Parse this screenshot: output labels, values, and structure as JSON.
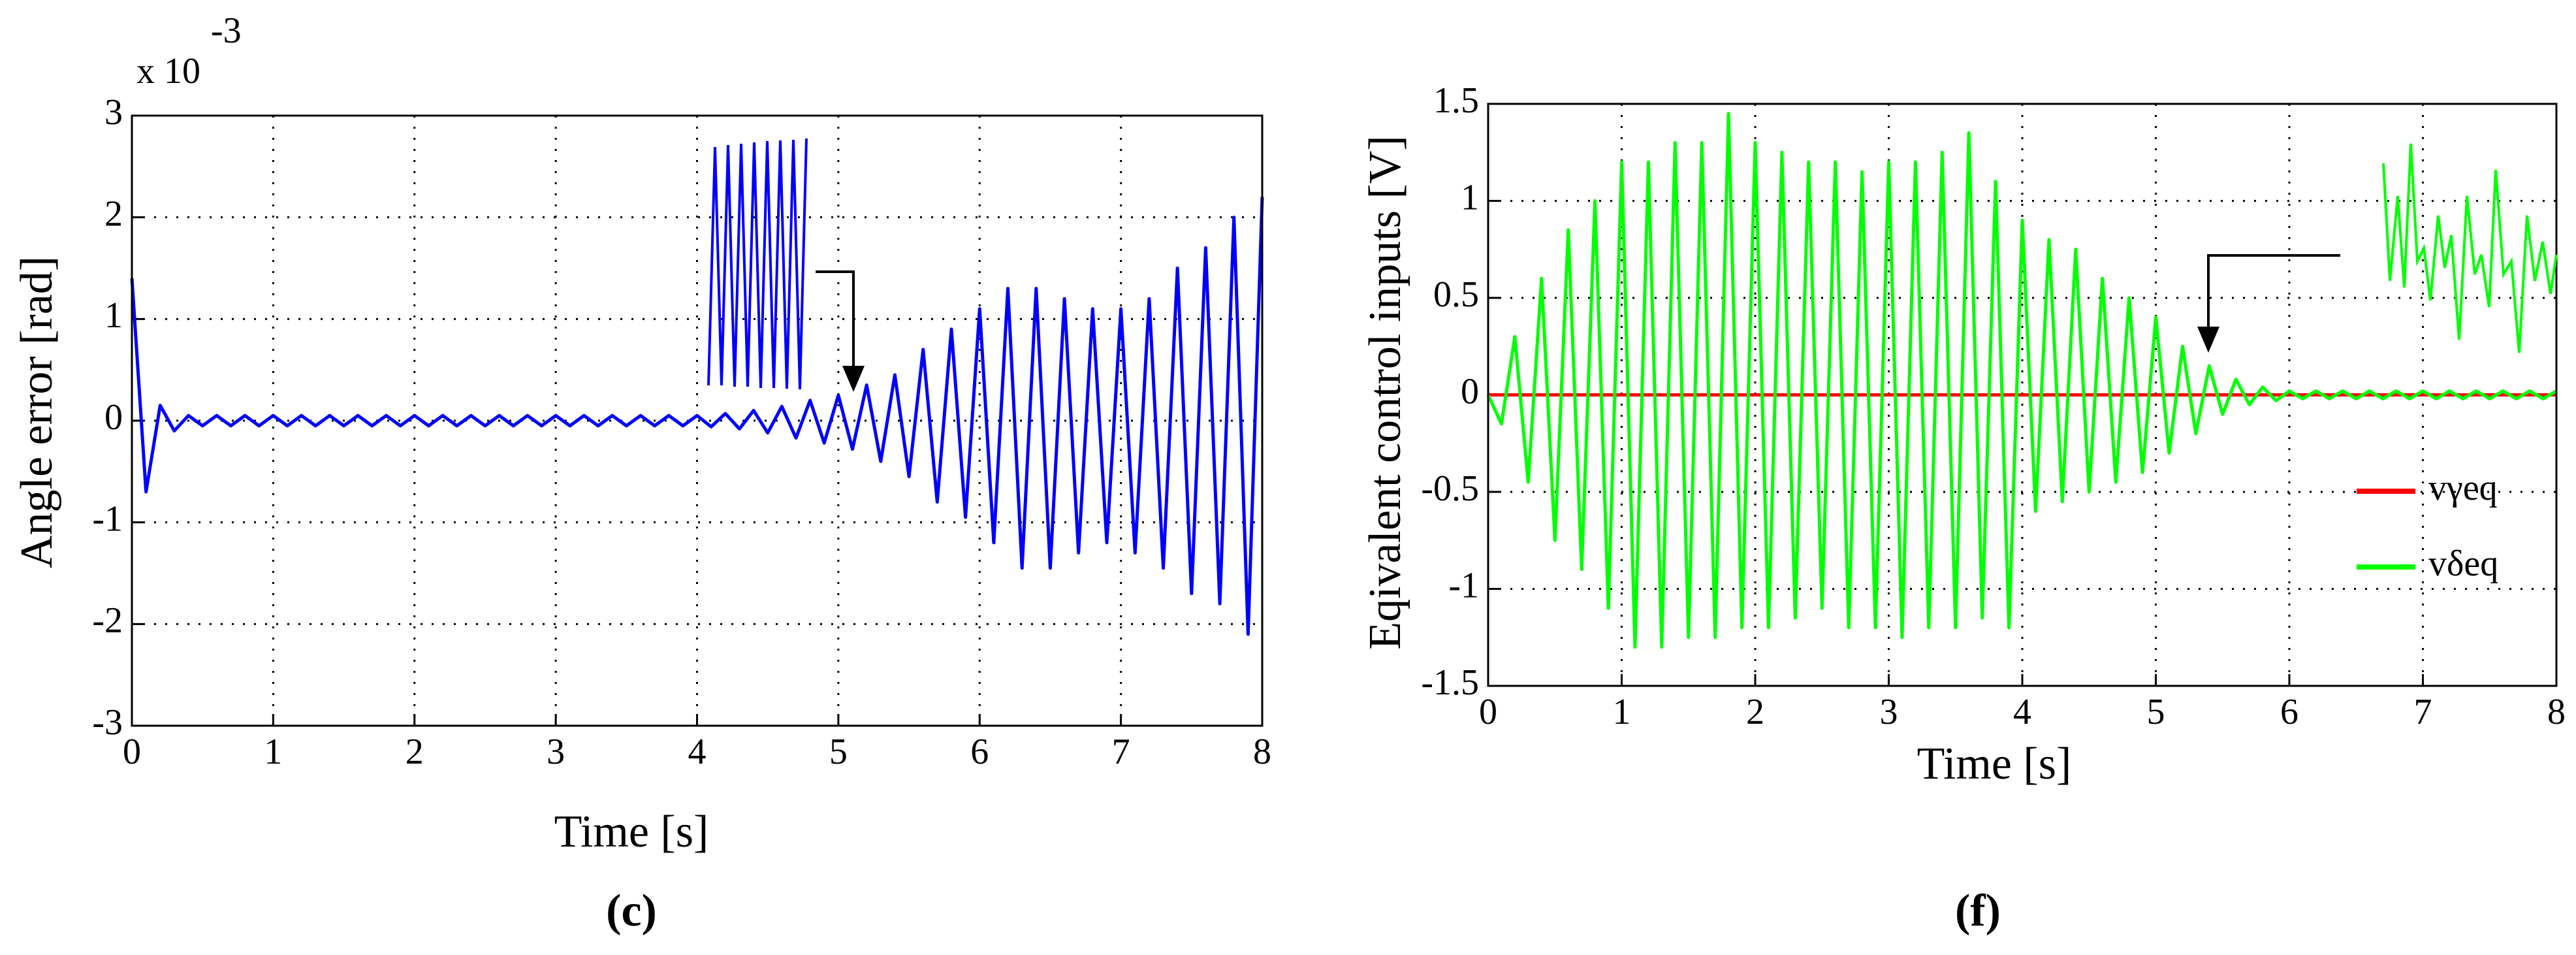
{
  "chart_data": [
    {
      "type": "line",
      "caption": "(c)",
      "xlabel": "Time  [s]",
      "ylabel": "Angle error [rad]",
      "y_multiplier": "x 10",
      "y_multiplier_exp": "-3",
      "xlim": [
        0,
        8
      ],
      "ylim": [
        -3,
        3
      ],
      "xticks": [
        0,
        1,
        2,
        3,
        4,
        5,
        6,
        7,
        8
      ],
      "yticks": [
        -3,
        -2,
        -1,
        0,
        1,
        2,
        3
      ],
      "grid": true,
      "x": [
        0,
        0.1,
        0.2,
        0.3,
        0.4,
        0.5,
        0.6,
        0.7,
        0.8,
        0.9,
        1,
        1.1,
        1.2,
        1.3,
        1.4,
        1.5,
        1.6,
        1.7,
        1.8,
        1.9,
        2,
        2.1,
        2.2,
        2.3,
        2.4,
        2.5,
        2.6,
        2.7,
        2.8,
        2.9,
        3,
        3.1,
        3.2,
        3.3,
        3.4,
        3.5,
        3.6,
        3.7,
        3.8,
        3.9,
        4,
        4.1,
        4.2,
        4.3,
        4.4,
        4.5,
        4.6,
        4.7,
        4.8,
        4.9,
        5,
        5.1,
        5.2,
        5.3,
        5.4,
        5.5,
        5.6,
        5.7,
        5.8,
        5.9,
        6,
        6.1,
        6.2,
        6.3,
        6.4,
        6.5,
        6.6,
        6.7,
        6.8,
        6.9,
        7,
        7.1,
        7.2,
        7.3,
        7.4,
        7.5,
        7.6,
        7.7,
        7.8,
        7.9,
        8
      ],
      "series": [
        {
          "color": "#0000ff",
          "values": [
            1.4,
            -0.7,
            0.15,
            -0.1,
            0.05,
            -0.05,
            0.05,
            -0.05,
            0.05,
            -0.05,
            0.05,
            -0.05,
            0.05,
            -0.05,
            0.05,
            -0.05,
            0.05,
            -0.05,
            0.05,
            -0.05,
            0.05,
            -0.05,
            0.05,
            -0.05,
            0.05,
            -0.05,
            0.05,
            -0.05,
            0.05,
            -0.05,
            0.05,
            -0.05,
            0.05,
            -0.05,
            0.05,
            -0.05,
            0.05,
            -0.05,
            0.05,
            -0.05,
            0.05,
            -0.06,
            0.07,
            -0.08,
            0.1,
            -0.12,
            0.14,
            -0.17,
            0.2,
            -0.22,
            0.25,
            -0.28,
            0.35,
            -0.4,
            0.45,
            -0.55,
            0.7,
            -0.8,
            0.9,
            -0.95,
            1.1,
            -1.2,
            1.3,
            -1.45,
            1.3,
            -1.45,
            1.2,
            -1.3,
            1.1,
            -1.2,
            1.1,
            -1.3,
            1.2,
            -1.45,
            1.5,
            -1.7,
            1.7,
            -1.8,
            2.0,
            -2.1,
            2.2
          ]
        }
      ]
    },
    {
      "type": "line",
      "caption": "(f)",
      "xlabel": "Time [s]",
      "ylabel": "Eqivalent control inputs [V]",
      "xlim": [
        0,
        8
      ],
      "ylim": [
        -1.5,
        1.5
      ],
      "xticks": [
        0,
        1,
        2,
        3,
        4,
        5,
        6,
        7,
        8
      ],
      "yticks": [
        -1.5,
        -1,
        -0.5,
        0,
        0.5,
        1,
        1.5
      ],
      "grid": true,
      "legend": "right",
      "x": [
        0,
        0.1,
        0.2,
        0.3,
        0.4,
        0.5,
        0.6,
        0.7,
        0.8,
        0.9,
        1,
        1.1,
        1.2,
        1.3,
        1.4,
        1.5,
        1.6,
        1.7,
        1.8,
        1.9,
        2,
        2.1,
        2.2,
        2.3,
        2.4,
        2.5,
        2.6,
        2.7,
        2.8,
        2.9,
        3,
        3.1,
        3.2,
        3.3,
        3.4,
        3.5,
        3.6,
        3.7,
        3.8,
        3.9,
        4,
        4.1,
        4.2,
        4.3,
        4.4,
        4.5,
        4.6,
        4.7,
        4.8,
        4.9,
        5,
        5.1,
        5.2,
        5.3,
        5.4,
        5.5,
        5.6,
        5.7,
        5.8,
        5.9,
        6,
        6.1,
        6.2,
        6.3,
        6.4,
        6.5,
        6.6,
        6.7,
        6.8,
        6.9,
        7,
        7.1,
        7.2,
        7.3,
        7.4,
        7.5,
        7.6,
        7.7,
        7.8,
        7.9,
        8
      ],
      "series": [
        {
          "name": "vγeq",
          "color": "#ff0000",
          "values": [
            0,
            0,
            0,
            0,
            0,
            0,
            0,
            0,
            0,
            0,
            0,
            0,
            0,
            0,
            0,
            0,
            0,
            0,
            0,
            0,
            0,
            0,
            0,
            0,
            0,
            0,
            0,
            0,
            0,
            0,
            0,
            0,
            0,
            0,
            0,
            0,
            0,
            0,
            0,
            0,
            0,
            0,
            0,
            0,
            0,
            0,
            0,
            0,
            0,
            0,
            0,
            0,
            0,
            0,
            0,
            0,
            0,
            0,
            0,
            0,
            0,
            0,
            0,
            0,
            0,
            0,
            0,
            0,
            0,
            0,
            0,
            0,
            0,
            0,
            0,
            0,
            0,
            0,
            0,
            0,
            0
          ]
        },
        {
          "name": "vδeq",
          "color": "#00ff00",
          "values": [
            0,
            -0.15,
            0.3,
            -0.45,
            0.6,
            -0.75,
            0.85,
            -0.9,
            1.0,
            -1.1,
            1.2,
            -1.3,
            1.2,
            -1.3,
            1.3,
            -1.25,
            1.3,
            -1.25,
            1.45,
            -1.2,
            1.3,
            -1.2,
            1.25,
            -1.15,
            1.2,
            -1.1,
            1.2,
            -1.2,
            1.15,
            -1.2,
            1.2,
            -1.25,
            1.2,
            -1.2,
            1.25,
            -1.2,
            1.35,
            -1.15,
            1.1,
            -1.2,
            0.9,
            -0.6,
            0.8,
            -0.55,
            0.75,
            -0.5,
            0.6,
            -0.45,
            0.5,
            -0.4,
            0.4,
            -0.3,
            0.25,
            -0.2,
            0.15,
            -0.1,
            0.08,
            -0.05,
            0.04,
            -0.03,
            0.02,
            -0.02,
            0.02,
            -0.02,
            0.02,
            -0.02,
            0.02,
            -0.02,
            0.02,
            -0.02,
            0.02,
            -0.02,
            0.02,
            -0.02,
            0.02,
            -0.02,
            0.02,
            -0.02,
            0.02,
            -0.02,
            0.02
          ]
        }
      ]
    }
  ]
}
